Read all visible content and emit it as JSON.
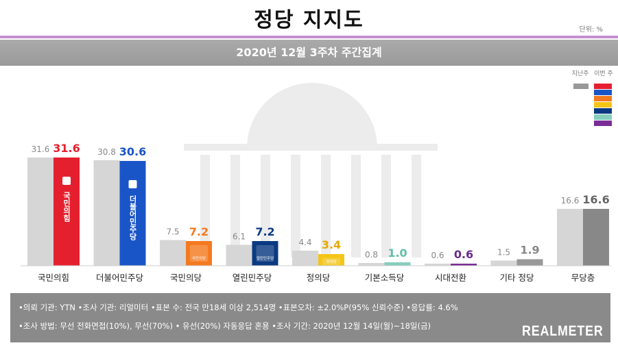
{
  "title": "정당 지지도",
  "unit_label": "단위: %",
  "subtitle": "2020년 12월 3주차 주간집계",
  "legend": {
    "prev_label": "지난주",
    "curr_label": "이번 주",
    "prev_color": "#999999"
  },
  "colors": {
    "prev_bar": "#d6d6d6",
    "background_watermark": "#ececec"
  },
  "chart_data": {
    "type": "bar",
    "categories": [
      "국민의힘",
      "더불어민주당",
      "국민의당",
      "열린민주당",
      "정의당",
      "기본소득당",
      "시대전환",
      "기타 정당",
      "무당층"
    ],
    "series": [
      {
        "name": "지난주",
        "values": [
          31.6,
          30.8,
          7.5,
          6.1,
          4.4,
          0.8,
          0.6,
          1.5,
          16.6
        ]
      },
      {
        "name": "이번 주",
        "values": [
          31.6,
          30.6,
          7.2,
          7.2,
          3.4,
          1.0,
          0.6,
          1.9,
          16.6
        ]
      }
    ],
    "current_colors": [
      "#e5202e",
      "#1a55c8",
      "#f47a20",
      "#0b3a82",
      "#f5c518",
      "#86cfbd",
      "#7b2d97",
      "#999999",
      "#888888"
    ],
    "current_label_colors": [
      "#e5202e",
      "#1a55c8",
      "#f47a20",
      "#0b3a82",
      "#e6a800",
      "#5fbfa8",
      "#6a2b8c",
      "#888888",
      "#666666"
    ],
    "bar_logos": [
      "국민의힘",
      "더불어민주당",
      "국민의당",
      "열린민주당",
      "정의당",
      "",
      "",
      "",
      ""
    ],
    "ylim": [
      0,
      35
    ],
    "grid": false,
    "legend_position": "top-right"
  },
  "footer": {
    "line1": "•의뢰 기관: YTN •조사 기관: 리얼미터 •표본 수: 전국 만18세 이상 2,514명 •표본오차: ±2.0%P(95% 신뢰수준) •응답률: 4.6%",
    "line2": "•조사 방법: 무선 전화면접(10%), 무선(70%) • 유선(20%) 자동응답 혼용 •조사 기간: 2020년 12월 14일(월)~18일(금)",
    "brand": "REALMETER"
  }
}
